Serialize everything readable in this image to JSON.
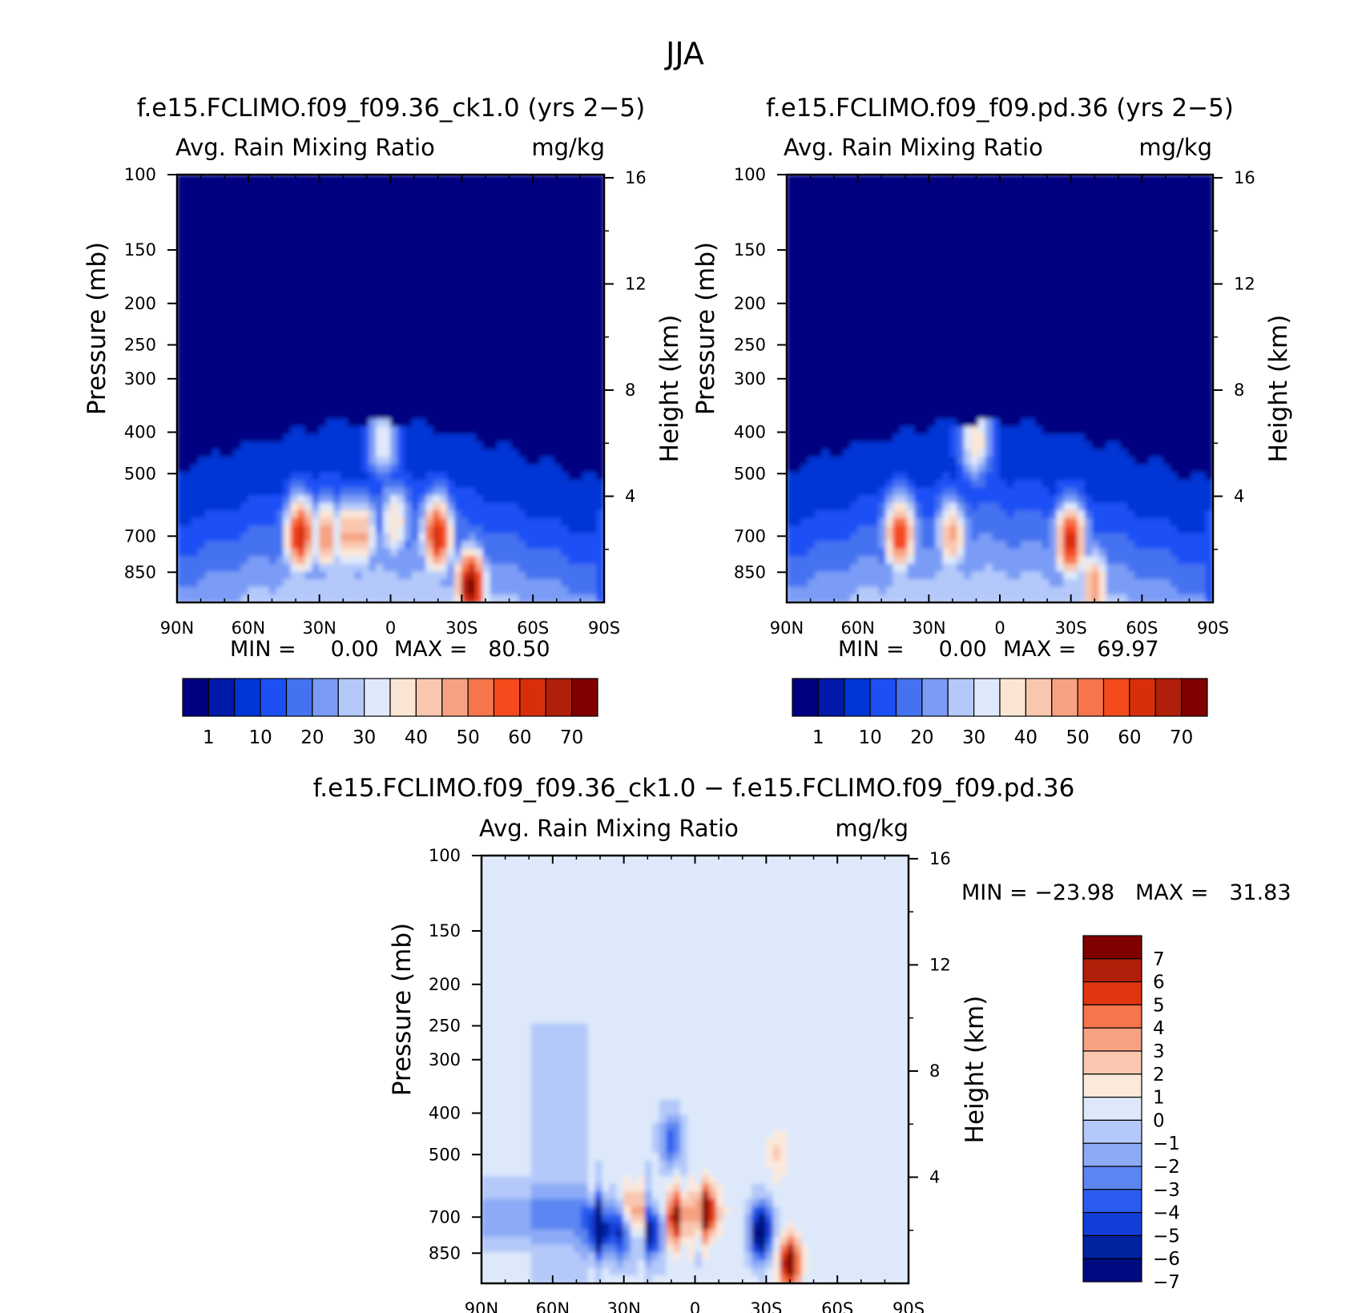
{
  "title": "JJA",
  "panels": [
    {
      "title": "f.e15.FCLIMO.f09_f09.36_ck1.0 (yrs 2−5)",
      "left_label": "Avg. Rain Mixing Ratio",
      "right_label": "mg/kg",
      "ylabel": "Pressure (mb)",
      "y2label": "Height (km)",
      "min_text": "MIN =     0.00",
      "max_text": "MAX =   80.50"
    },
    {
      "title": "f.e15.FCLIMO.f09_f09.pd.36 (yrs 2−5)",
      "left_label": "Avg. Rain Mixing Ratio",
      "right_label": "mg/kg",
      "ylabel": "Pressure (mb)",
      "y2label": "Height (km)",
      "min_text": "MIN =     0.00",
      "max_text": "MAX =   69.97"
    },
    {
      "title": "f.e15.FCLIMO.f09_f09.36_ck1.0 − f.e15.FCLIMO.f09_f09.pd.36",
      "left_label": "Avg. Rain Mixing Ratio",
      "right_label": "mg/kg",
      "ylabel": "Pressure (mb)",
      "y2label": "Height (km)",
      "min_text": "MIN = −23.98",
      "max_text": "MAX =   31.83"
    }
  ],
  "chart_data": [
    {
      "type": "heatmap",
      "title": "f.e15.FCLIMO.f09_f09.36_ck1.0 (yrs 2−5)",
      "xlabel": "",
      "ylabel": "Pressure (mb)",
      "y2label": "Height (km)",
      "x_ticks": [
        "90N",
        "60N",
        "30N",
        "0",
        "30S",
        "60S",
        "90S"
      ],
      "x_range": [
        90,
        -90
      ],
      "y_ticks": [
        100,
        150,
        200,
        250,
        300,
        400,
        500,
        700,
        850
      ],
      "y_range": [
        100,
        1000
      ],
      "y_scale": "log",
      "y2_ticks": [
        16,
        12,
        8,
        4
      ],
      "colorbar_ticks": [
        "1",
        "10",
        "20",
        "30",
        "40",
        "50",
        "60",
        "70"
      ],
      "min": 0.0,
      "max": 80.5,
      "features": [
        {
          "lat": 38,
          "p": 700,
          "value": 60
        },
        {
          "lat": 27,
          "p": 700,
          "value": 45
        },
        {
          "lat": 18,
          "p": 700,
          "value": 42
        },
        {
          "lat": 12,
          "p": 700,
          "value": 42
        },
        {
          "lat": -2,
          "p": 650,
          "value": 35
        },
        {
          "lat": -20,
          "p": 700,
          "value": 60
        },
        {
          "lat": 3,
          "p": 420,
          "value": 30
        },
        {
          "lat": -34,
          "p": 920,
          "value": 70
        }
      ]
    },
    {
      "type": "heatmap",
      "title": "f.e15.FCLIMO.f09_f09.pd.36 (yrs 2−5)",
      "xlabel": "",
      "ylabel": "Pressure (mb)",
      "y2label": "Height (km)",
      "x_ticks": [
        "90N",
        "60N",
        "30N",
        "0",
        "30S",
        "60S",
        "90S"
      ],
      "x_range": [
        90,
        -90
      ],
      "y_ticks": [
        100,
        150,
        200,
        250,
        300,
        400,
        500,
        700,
        850
      ],
      "y_range": [
        100,
        1000
      ],
      "y_scale": "log",
      "y2_ticks": [
        16,
        12,
        8,
        4
      ],
      "colorbar_ticks": [
        "1",
        "10",
        "20",
        "30",
        "40",
        "50",
        "60",
        "70"
      ],
      "min": 0.0,
      "max": 69.97,
      "features": [
        {
          "lat": 42,
          "p": 700,
          "value": 55
        },
        {
          "lat": 20,
          "p": 700,
          "value": 42
        },
        {
          "lat": 10,
          "p": 420,
          "value": 35
        },
        {
          "lat": -30,
          "p": 720,
          "value": 60
        },
        {
          "lat": -40,
          "p": 920,
          "value": 45
        }
      ]
    },
    {
      "type": "heatmap",
      "title": "f.e15.FCLIMO.f09_f09.36_ck1.0 − f.e15.FCLIMO.f09_f09.pd.36",
      "xlabel": "",
      "ylabel": "Pressure (mb)",
      "y2label": "Height (km)",
      "x_ticks": [
        "90N",
        "60N",
        "30N",
        "0",
        "30S",
        "60S",
        "90S"
      ],
      "x_range": [
        90,
        -90
      ],
      "y_ticks": [
        100,
        150,
        200,
        250,
        300,
        400,
        500,
        700,
        850
      ],
      "y_range": [
        100,
        1000
      ],
      "y_scale": "log",
      "y2_ticks": [
        16,
        12,
        8,
        4
      ],
      "colorbar_ticks": [
        "7",
        "6",
        "5",
        "4",
        "3",
        "2",
        "1",
        "0",
        "−1",
        "−2",
        "−3",
        "−4",
        "−5",
        "−6",
        "−7"
      ],
      "min": -23.98,
      "max": 31.83,
      "features": [
        {
          "lat": -5,
          "p": 680,
          "value": 8
        },
        {
          "lat": 8,
          "p": 700,
          "value": 7
        },
        {
          "lat": 26,
          "p": 700,
          "value": 6
        },
        {
          "lat": 40,
          "p": 750,
          "value": -8
        },
        {
          "lat": 30,
          "p": 760,
          "value": -7
        },
        {
          "lat": 18,
          "p": 760,
          "value": -7
        },
        {
          "lat": -28,
          "p": 760,
          "value": -9
        },
        {
          "lat": -40,
          "p": 900,
          "value": 8
        },
        {
          "lat": -35,
          "p": 500,
          "value": 2
        },
        {
          "lat": 10,
          "p": 460,
          "value": -4
        }
      ]
    }
  ],
  "colors": {
    "sequential": [
      "#000080",
      "#0019a8",
      "#0035d6",
      "#1c50f5",
      "#4472f0",
      "#7a9cf6",
      "#b4c9fa",
      "#dfe9fb",
      "#fbe6d6",
      "#f9c7b0",
      "#f6a282",
      "#f6754a",
      "#f44a1c",
      "#d92e0a",
      "#b01f0a",
      "#800000"
    ],
    "diverging": [
      "#800000",
      "#b01f0a",
      "#e03510",
      "#f6754a",
      "#f6a282",
      "#f9c7b0",
      "#fbe9dc",
      "#dde9fb",
      "#b4c9fa",
      "#8caaf6",
      "#5b86f2",
      "#2c5cef",
      "#123fd8",
      "#0022a0",
      "#000a80"
    ]
  }
}
